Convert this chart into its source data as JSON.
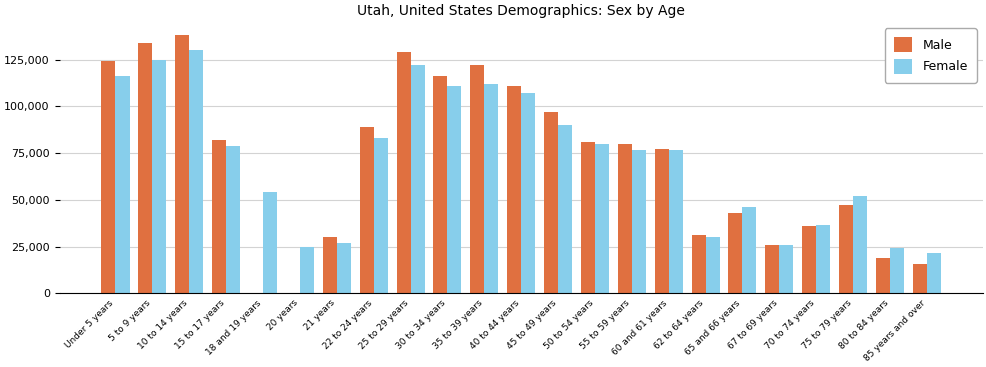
{
  "title": "Utah, United States Demographics: Sex by Age",
  "categories": [
    "Under 5 years",
    "5 to 9 years",
    "10 to 14 years",
    "15 to 17 years",
    "18 and 19 years",
    "20 years",
    "21 years",
    "22 to 24 years",
    "25 to 29 years",
    "30 to 34 years",
    "35 to 39 years",
    "40 to 44 years",
    "45 to 49 years",
    "50 to 54 years",
    "55 to 59 years",
    "60 and 61 years",
    "62 to 64 years",
    "65 and 66 years",
    "67 to 69 years",
    "70 to 74 years",
    "75 to 79 years",
    "80 to 84 years",
    "85 years and over"
  ],
  "male": [
    124000,
    134000,
    138000,
    82000,
    0,
    0,
    30000,
    89000,
    129000,
    116000,
    122000,
    111000,
    97000,
    81000,
    80000,
    77000,
    31000,
    43000,
    26000,
    36000,
    47000,
    19000,
    15500
  ],
  "female": [
    116000,
    125000,
    130000,
    79000,
    54000,
    25000,
    27000,
    83000,
    122000,
    111000,
    112000,
    107000,
    90000,
    80000,
    76500,
    76500,
    30000,
    46000,
    26000,
    36500,
    52000,
    24500,
    21500
  ],
  "male_color": "#E07040",
  "female_color": "#87CEEB",
  "ylim": [
    0,
    145000
  ],
  "yticks": [
    0,
    25000,
    50000,
    75000,
    100000,
    125000
  ],
  "bar_width": 0.38,
  "background_color": "#ffffff",
  "title_fontsize": 10,
  "tick_fontsize": 6.5
}
